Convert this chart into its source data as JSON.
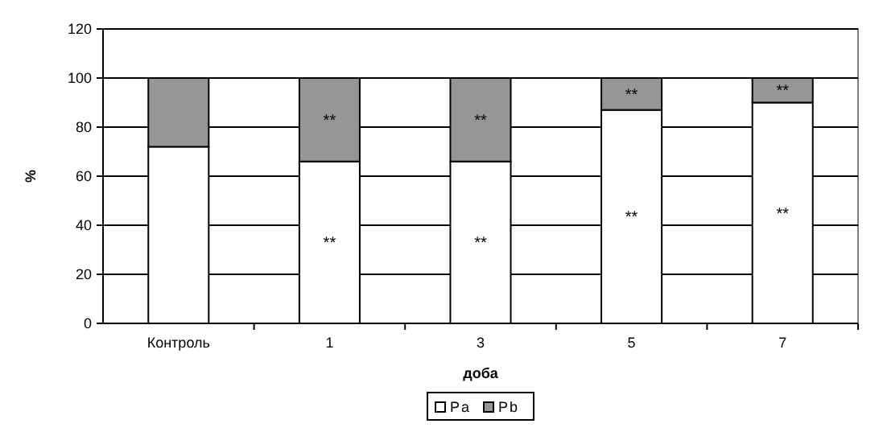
{
  "chart_data": {
    "type": "bar",
    "stacked": true,
    "xlabel": "доба",
    "ylabel": "%",
    "categories": [
      "Контроль",
      "1",
      "3",
      "5",
      "7"
    ],
    "series": [
      {
        "name": "Pa",
        "color": "#ffffff",
        "values": [
          72,
          66,
          66,
          87,
          90
        ],
        "value_labels": [
          null,
          "**",
          "**",
          "**",
          "**"
        ]
      },
      {
        "name": "Pb",
        "color": "#969696",
        "values": [
          28,
          34,
          34,
          13,
          10
        ],
        "value_labels": [
          null,
          "**",
          "**",
          "**",
          "**"
        ]
      }
    ],
    "ylim": [
      0,
      120
    ],
    "yticks": [
      0,
      20,
      40,
      60,
      80,
      100,
      120
    ],
    "grid": "y",
    "legend": "bottom"
  }
}
